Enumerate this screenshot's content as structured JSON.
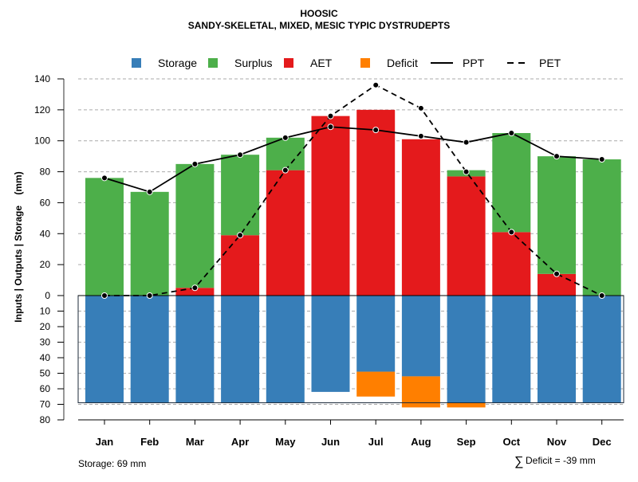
{
  "chart_data": {
    "type": "bar",
    "title": "HOOSIC",
    "subtitle": "SANDY-SKELETAL, MIXED, MESIC TYPIC DYSTRUDEPTS",
    "ylabel": "Inputs | Outputs | Storage    (mm)",
    "categories": [
      "Jan",
      "Feb",
      "Mar",
      "Apr",
      "May",
      "Jun",
      "Jul",
      "Aug",
      "Sep",
      "Oct",
      "Nov",
      "Dec"
    ],
    "ylim_top": [
      0,
      140
    ],
    "ylim_bottom": [
      0,
      80
    ],
    "yticks_top": [
      "0",
      "20",
      "40",
      "60",
      "80",
      "100",
      "120",
      "140"
    ],
    "yticks_bottom": [
      "10",
      "20",
      "30",
      "40",
      "50",
      "60",
      "70",
      "80"
    ],
    "series": [
      {
        "name": "Storage",
        "color": "#377EB8",
        "values": [
          69,
          69,
          69,
          69,
          69,
          62,
          49,
          52,
          69,
          69,
          69,
          69
        ]
      },
      {
        "name": "Surplus",
        "color": "#4DAF4A",
        "values": [
          76,
          67,
          80,
          52,
          21,
          0,
          0,
          0,
          4,
          64,
          76,
          88
        ]
      },
      {
        "name": "AET",
        "color": "#E41A1C",
        "values": [
          0,
          0,
          5,
          39,
          81,
          116,
          120,
          101,
          77,
          41,
          14,
          0
        ]
      },
      {
        "name": "Deficit",
        "color": "#FF7F00",
        "values": [
          0,
          0,
          0,
          0,
          0,
          0,
          16,
          20,
          3,
          0,
          0,
          0
        ]
      },
      {
        "name": "PPT",
        "style": "solid",
        "values": [
          76,
          67,
          85,
          91,
          102,
          109,
          107,
          103,
          99,
          105,
          90,
          88
        ]
      },
      {
        "name": "PET",
        "style": "dashed",
        "values": [
          0,
          0,
          5,
          39,
          81,
          116,
          136,
          121,
          80,
          41,
          14,
          0
        ]
      }
    ],
    "legend_position": "top",
    "grid": true,
    "annotations": {
      "storage": "Storage: 69 mm",
      "deficit_symbol": "∑",
      "deficit": "Deficit = -39 mm"
    }
  }
}
